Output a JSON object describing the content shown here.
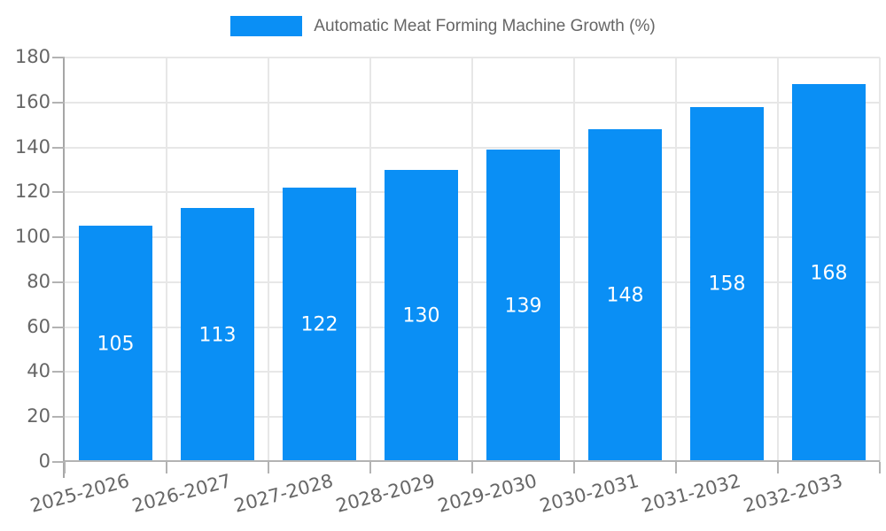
{
  "legend": {
    "label": "Automatic Meat Forming Machine Growth (%)",
    "swatch_color": "#0a8ff5"
  },
  "chart_data": {
    "type": "bar",
    "title": "Automatic Meat Forming Machine Growth (%)",
    "categories": [
      "2025-2026",
      "2026-2027",
      "2027-2028",
      "2028-2029",
      "2029-2030",
      "2030-2031",
      "2031-2032",
      "2032-2033"
    ],
    "values": [
      105,
      113,
      122,
      130,
      139,
      148,
      158,
      168
    ],
    "xlabel": "",
    "ylabel": "",
    "ylim": [
      0,
      180
    ],
    "yticks": [
      0,
      20,
      40,
      60,
      80,
      100,
      120,
      140,
      160,
      180
    ],
    "grid": true,
    "legend_position": "top-center",
    "value_labels": "centered-inside-bars",
    "colors": {
      "bar": "#0a8ff5",
      "value_label": "#ffffff",
      "grid": "#e7e7e7",
      "axis": "#b3b3b3",
      "y_axis_line": "#a6a6a6",
      "tick_label": "#666666",
      "background": "#ffffff"
    }
  }
}
